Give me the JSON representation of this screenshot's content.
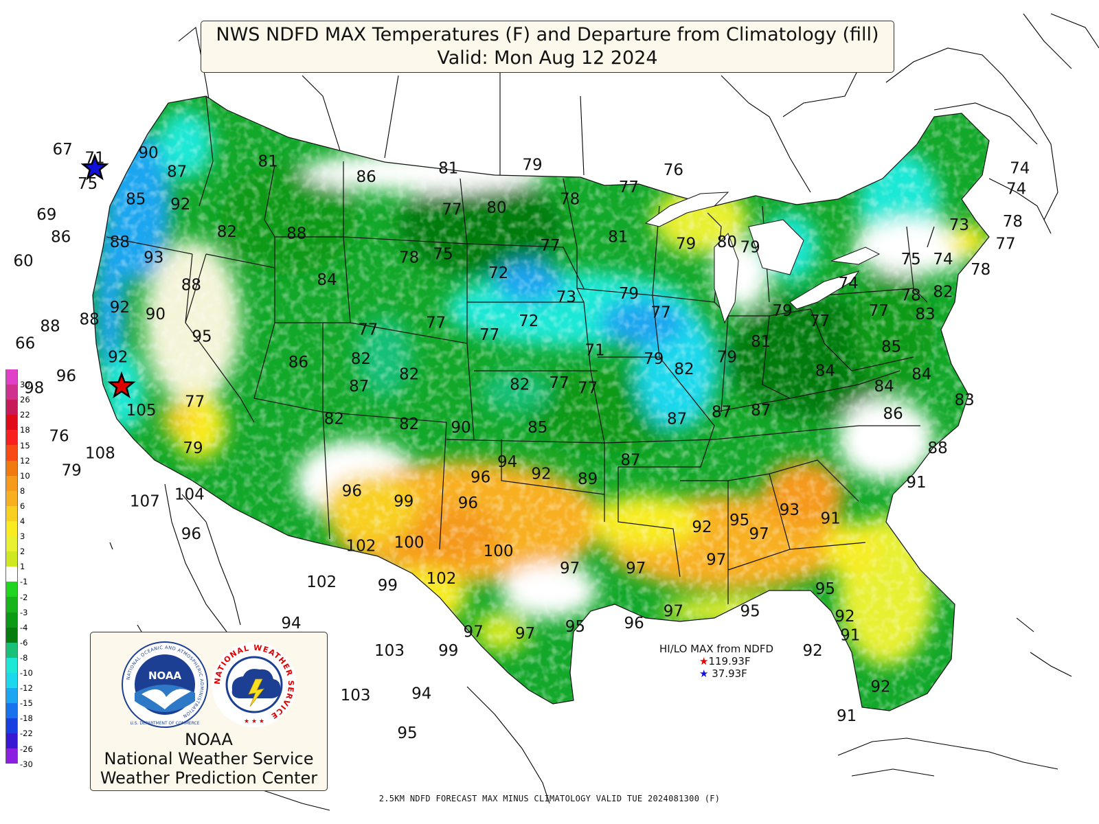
{
  "title": {
    "line1": "NWS NDFD MAX Temperatures (F) and Departure from Climatology (fill)",
    "line2": "Valid: Mon Aug 12 2024"
  },
  "legend": {
    "entries": [
      {
        "label": "30",
        "color": "#e23fc8"
      },
      {
        "label": "26",
        "color": "#d0308e"
      },
      {
        "label": "22",
        "color": "#c81a5a"
      },
      {
        "label": "18",
        "color": "#e00a1a"
      },
      {
        "label": "15",
        "color": "#f82020"
      },
      {
        "label": "12",
        "color": "#f84a14"
      },
      {
        "label": "10",
        "color": "#f07a10"
      },
      {
        "label": "8",
        "color": "#f59a1a"
      },
      {
        "label": "6",
        "color": "#f8b020"
      },
      {
        "label": "4",
        "color": "#f8d020"
      },
      {
        "label": "3",
        "color": "#f8ec20"
      },
      {
        "label": "2",
        "color": "#e8f030"
      },
      {
        "label": "1",
        "color": "#d0e820"
      },
      {
        "label": "-1",
        "color": "#ffffff"
      },
      {
        "label": "-2",
        "color": "#22d422"
      },
      {
        "label": "-3",
        "color": "#16b41a"
      },
      {
        "label": "-4",
        "color": "#0c9a14"
      },
      {
        "label": "-6",
        "color": "#067c0e"
      },
      {
        "label": "-8",
        "color": "#18c078"
      },
      {
        "label": "-10",
        "color": "#1ce8d6"
      },
      {
        "label": "-12",
        "color": "#1cd8ec"
      },
      {
        "label": "-15",
        "color": "#1aa6f0"
      },
      {
        "label": "-18",
        "color": "#1872ee"
      },
      {
        "label": "-22",
        "color": "#1840e0"
      },
      {
        "label": "-26",
        "color": "#3818d0"
      },
      {
        "label": "-30",
        "color": "#8c20e0"
      }
    ]
  },
  "temperatures": [
    {
      "value": "67",
      "lon": -124.8,
      "lat": 49.0
    },
    {
      "value": "71",
      "lon": -123.0,
      "lat": 48.5
    },
    {
      "value": "90",
      "lon": -120.0,
      "lat": 48.8
    },
    {
      "value": "87",
      "lon": -118.4,
      "lat": 47.7
    },
    {
      "value": "81",
      "lon": -113.3,
      "lat": 48.3
    },
    {
      "value": "75",
      "lon": -123.4,
      "lat": 47.0
    },
    {
      "value": "85",
      "lon": -120.7,
      "lat": 46.1
    },
    {
      "value": "92",
      "lon": -118.2,
      "lat": 45.8
    },
    {
      "value": "69",
      "lon": -125.7,
      "lat": 45.2
    },
    {
      "value": "86",
      "lon": -124.9,
      "lat": 43.9
    },
    {
      "value": "88",
      "lon": -121.6,
      "lat": 43.6
    },
    {
      "value": "82",
      "lon": -115.6,
      "lat": 44.2
    },
    {
      "value": "88",
      "lon": -111.7,
      "lat": 44.1
    },
    {
      "value": "93",
      "lon": -119.7,
      "lat": 42.7
    },
    {
      "value": "60",
      "lon": -127.0,
      "lat": 42.5
    },
    {
      "value": "88",
      "lon": -117.6,
      "lat": 41.1
    },
    {
      "value": "92",
      "lon": -121.6,
      "lat": 39.8
    },
    {
      "value": "90",
      "lon": -119.6,
      "lat": 39.4
    },
    {
      "value": "88",
      "lon": -123.3,
      "lat": 39.1
    },
    {
      "value": "88",
      "lon": -125.5,
      "lat": 38.7
    },
    {
      "value": "66",
      "lon": -126.9,
      "lat": 37.7
    },
    {
      "value": "95",
      "lon": -117.0,
      "lat": 38.1
    },
    {
      "value": "92",
      "lon": -121.7,
      "lat": 36.9
    },
    {
      "value": "96",
      "lon": -124.6,
      "lat": 35.8
    },
    {
      "value": "98",
      "lon": -126.4,
      "lat": 35.1
    },
    {
      "value": "105",
      "lon": -120.4,
      "lat": 33.8
    },
    {
      "value": "77",
      "lon": -117.4,
      "lat": 34.3
    },
    {
      "value": "76",
      "lon": -125.0,
      "lat": 32.3
    },
    {
      "value": "108",
      "lon": -122.7,
      "lat": 31.3
    },
    {
      "value": "79",
      "lon": -124.3,
      "lat": 30.3
    },
    {
      "value": "79",
      "lon": -117.5,
      "lat": 31.6
    },
    {
      "value": "107",
      "lon": -120.2,
      "lat": 28.5
    },
    {
      "value": "104",
      "lon": -117.7,
      "lat": 28.9
    },
    {
      "value": "96",
      "lon": -117.6,
      "lat": 26.6
    },
    {
      "value": "86",
      "lon": -107.8,
      "lat": 47.4
    },
    {
      "value": "81",
      "lon": -103.2,
      "lat": 47.9
    },
    {
      "value": "79",
      "lon": -98.5,
      "lat": 48.1
    },
    {
      "value": "77",
      "lon": -103.0,
      "lat": 45.5
    },
    {
      "value": "80",
      "lon": -100.5,
      "lat": 45.6
    },
    {
      "value": "78",
      "lon": -96.4,
      "lat": 46.1
    },
    {
      "value": "77",
      "lon": -93.1,
      "lat": 46.8
    },
    {
      "value": "76",
      "lon": -90.6,
      "lat": 47.8
    },
    {
      "value": "84",
      "lon": -110.0,
      "lat": 41.4
    },
    {
      "value": "78",
      "lon": -105.4,
      "lat": 42.7
    },
    {
      "value": "75",
      "lon": -103.5,
      "lat": 42.9
    },
    {
      "value": "72",
      "lon": -100.4,
      "lat": 41.8
    },
    {
      "value": "77",
      "lon": -97.5,
      "lat": 43.4
    },
    {
      "value": "81",
      "lon": -93.7,
      "lat": 43.9
    },
    {
      "value": "79",
      "lon": -89.9,
      "lat": 43.5
    },
    {
      "value": "80",
      "lon": -87.6,
      "lat": 43.6
    },
    {
      "value": "79",
      "lon": -86.3,
      "lat": 43.3
    },
    {
      "value": "73",
      "lon": -96.6,
      "lat": 40.4
    },
    {
      "value": "79",
      "lon": -93.1,
      "lat": 40.6
    },
    {
      "value": "77",
      "lon": -107.7,
      "lat": 38.5
    },
    {
      "value": "77",
      "lon": -103.9,
      "lat": 38.9
    },
    {
      "value": "72",
      "lon": -98.7,
      "lat": 39.0
    },
    {
      "value": "77",
      "lon": -100.9,
      "lat": 38.2
    },
    {
      "value": "77",
      "lon": -91.3,
      "lat": 39.5
    },
    {
      "value": "82",
      "lon": -108.1,
      "lat": 36.8
    },
    {
      "value": "86",
      "lon": -111.6,
      "lat": 36.6
    },
    {
      "value": "82",
      "lon": -105.4,
      "lat": 35.9
    },
    {
      "value": "87",
      "lon": -108.2,
      "lat": 35.2
    },
    {
      "value": "82",
      "lon": -99.2,
      "lat": 35.3
    },
    {
      "value": "71",
      "lon": -95.0,
      "lat": 37.3
    },
    {
      "value": "77",
      "lon": -97.0,
      "lat": 35.4
    },
    {
      "value": "77",
      "lon": -95.4,
      "lat": 35.1
    },
    {
      "value": "79",
      "lon": -91.7,
      "lat": 36.8
    },
    {
      "value": "82",
      "lon": -90.0,
      "lat": 36.2
    },
    {
      "value": "82",
      "lon": -109.6,
      "lat": 33.3
    },
    {
      "value": "82",
      "lon": -105.4,
      "lat": 33.0
    },
    {
      "value": "90",
      "lon": -102.5,
      "lat": 32.8
    },
    {
      "value": "85",
      "lon": -98.2,
      "lat": 32.8
    },
    {
      "value": "94",
      "lon": -99.9,
      "lat": 30.8
    },
    {
      "value": "96",
      "lon": -101.4,
      "lat": 29.9
    },
    {
      "value": "92",
      "lon": -98.0,
      "lat": 30.1
    },
    {
      "value": "89",
      "lon": -95.4,
      "lat": 29.8
    },
    {
      "value": "87",
      "lon": -93.0,
      "lat": 30.9
    },
    {
      "value": "87",
      "lon": -90.4,
      "lat": 33.3
    },
    {
      "value": "87",
      "lon": -87.9,
      "lat": 33.7
    },
    {
      "value": "87",
      "lon": -85.7,
      "lat": 33.8
    },
    {
      "value": "96",
      "lon": -108.6,
      "lat": 29.1
    },
    {
      "value": "99",
      "lon": -105.7,
      "lat": 28.5
    },
    {
      "value": "96",
      "lon": -102.1,
      "lat": 28.4
    },
    {
      "value": "102",
      "lon": -108.1,
      "lat": 25.9
    },
    {
      "value": "100",
      "lon": -105.4,
      "lat": 26.1
    },
    {
      "value": "100",
      "lon": -100.4,
      "lat": 25.6
    },
    {
      "value": "102",
      "lon": -110.3,
      "lat": 23.8
    },
    {
      "value": "99",
      "lon": -106.6,
      "lat": 23.6
    },
    {
      "value": "102",
      "lon": -103.6,
      "lat": 24.0
    },
    {
      "value": "97",
      "lon": -96.4,
      "lat": 24.6
    },
    {
      "value": "97",
      "lon": -92.7,
      "lat": 24.6
    },
    {
      "value": "92",
      "lon": -89.0,
      "lat": 27.0
    },
    {
      "value": "97",
      "lon": -88.2,
      "lat": 25.1
    },
    {
      "value": "95",
      "lon": -86.9,
      "lat": 27.4
    },
    {
      "value": "97",
      "lon": -85.8,
      "lat": 26.6
    },
    {
      "value": "93",
      "lon": -84.1,
      "lat": 28.0
    },
    {
      "value": "91",
      "lon": -81.8,
      "lat": 27.5
    },
    {
      "value": "94",
      "lon": -112.0,
      "lat": 21.4
    },
    {
      "value": "97",
      "lon": -101.8,
      "lat": 20.9
    },
    {
      "value": "97",
      "lon": -98.9,
      "lat": 20.8
    },
    {
      "value": "95",
      "lon": -96.1,
      "lat": 21.2
    },
    {
      "value": "96",
      "lon": -92.8,
      "lat": 21.4
    },
    {
      "value": "97",
      "lon": -90.6,
      "lat": 22.1
    },
    {
      "value": "95",
      "lon": -86.3,
      "lat": 22.1
    },
    {
      "value": "95",
      "lon": -82.1,
      "lat": 23.4
    },
    {
      "value": "92",
      "lon": -81.0,
      "lat": 21.8
    },
    {
      "value": "91",
      "lon": -80.7,
      "lat": 20.7
    },
    {
      "value": "92",
      "lon": -82.8,
      "lat": 19.8
    },
    {
      "value": "103",
      "lon": -106.5,
      "lat": 19.8
    },
    {
      "value": "99",
      "lon": -103.2,
      "lat": 19.8
    },
    {
      "value": "103",
      "lon": -108.4,
      "lat": 17.2
    },
    {
      "value": "94",
      "lon": -104.7,
      "lat": 17.3
    },
    {
      "value": "95",
      "lon": -105.5,
      "lat": 15.0
    },
    {
      "value": "92",
      "lon": -79.0,
      "lat": 17.7
    },
    {
      "value": "91",
      "lon": -80.9,
      "lat": 16.0
    },
    {
      "value": "74",
      "lon": -71.2,
      "lat": 47.9
    },
    {
      "value": "74",
      "lon": -71.4,
      "lat": 46.7
    },
    {
      "value": "73",
      "lon": -74.6,
      "lat": 44.6
    },
    {
      "value": "78",
      "lon": -71.6,
      "lat": 44.8
    },
    {
      "value": "77",
      "lon": -72.0,
      "lat": 43.5
    },
    {
      "value": "75",
      "lon": -77.3,
      "lat": 42.6
    },
    {
      "value": "74",
      "lon": -75.5,
      "lat": 42.6
    },
    {
      "value": "78",
      "lon": -73.4,
      "lat": 42.0
    },
    {
      "value": "74",
      "lon": -80.8,
      "lat": 41.2
    },
    {
      "value": "78",
      "lon": -77.3,
      "lat": 40.5
    },
    {
      "value": "82",
      "lon": -75.5,
      "lat": 40.7
    },
    {
      "value": "77",
      "lon": -79.1,
      "lat": 39.6
    },
    {
      "value": "83",
      "lon": -76.5,
      "lat": 39.4
    },
    {
      "value": "79",
      "lon": -84.5,
      "lat": 39.6
    },
    {
      "value": "77",
      "lon": -82.4,
      "lat": 39.0
    },
    {
      "value": "81",
      "lon": -85.7,
      "lat": 37.8
    },
    {
      "value": "79",
      "lon": -87.6,
      "lat": 36.9
    },
    {
      "value": "85",
      "lon": -78.4,
      "lat": 37.5
    },
    {
      "value": "84",
      "lon": -82.1,
      "lat": 36.1
    },
    {
      "value": "84",
      "lon": -78.8,
      "lat": 35.2
    },
    {
      "value": "84",
      "lon": -76.7,
      "lat": 35.9
    },
    {
      "value": "86",
      "lon": -78.3,
      "lat": 33.6
    },
    {
      "value": "83",
      "lon": -74.3,
      "lat": 34.4
    },
    {
      "value": "88",
      "lon": -75.8,
      "lat": 31.6
    },
    {
      "value": "91",
      "lon": -77.0,
      "lat": 29.6
    }
  ],
  "hilo": {
    "heading": "HI/LO MAX from NDFD",
    "hi": "119.93F",
    "lo": "37.93F",
    "hi_marker": {
      "lon": -121.5,
      "lat": 35.5
    },
    "lo_marker": {
      "lon": -123.0,
      "lat": 48.2
    }
  },
  "logo": {
    "noaa_ring_text": "NATIONAL OCEANIC AND ATMOSPHERIC ADMINISTRATION",
    "noaa_bottom_text": "U.S. DEPARTMENT OF COMMERCE",
    "noaa_center": "NOAA",
    "nws_ring_text": "NATIONAL WEATHER SERVICE",
    "line1": "NOAA",
    "line2": "National Weather Service",
    "line3": "Weather Prediction Center"
  },
  "footer": "2.5KM NDFD FORECAST MAX MINUS CLIMATOLOGY VALID TUE 2024081300 (F)"
}
